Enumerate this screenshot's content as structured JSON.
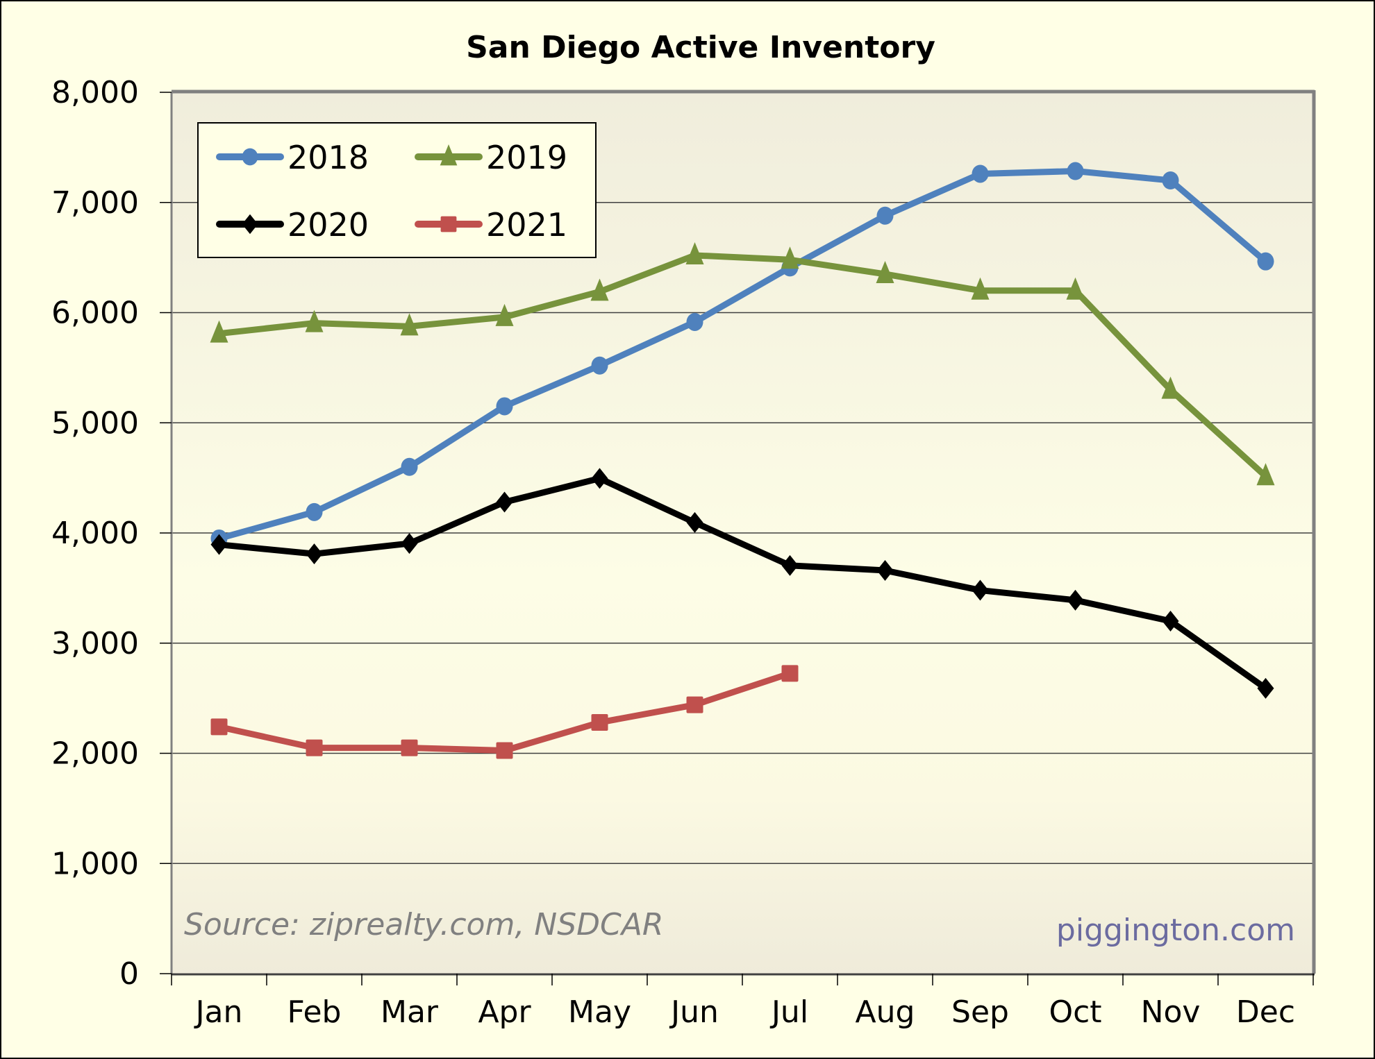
{
  "chart_data": {
    "type": "line",
    "title": "San Diego Active Inventory",
    "xlabel": "",
    "ylabel": "",
    "categories": [
      "Jan",
      "Feb",
      "Mar",
      "Apr",
      "May",
      "Jun",
      "Jul",
      "Aug",
      "Sep",
      "Oct",
      "Nov",
      "Dec"
    ],
    "ylim": [
      0,
      8000
    ],
    "yticks": [
      0,
      1000,
      2000,
      3000,
      4000,
      5000,
      6000,
      7000,
      8000
    ],
    "ytick_labels": [
      "0",
      "1,000",
      "2,000",
      "3,000",
      "4,000",
      "5,000",
      "6,000",
      "7,000",
      "8,000"
    ],
    "grid": true,
    "legend_position": "top-left",
    "series": [
      {
        "name": "2018",
        "color": "#4F81BD",
        "marker": "circle",
        "values": [
          3950,
          4190,
          4600,
          5150,
          5520,
          5915,
          6410,
          6880,
          7260,
          7285,
          7200,
          6465
        ]
      },
      {
        "name": "2019",
        "color": "#77933C",
        "marker": "triangle",
        "values": [
          5810,
          5905,
          5875,
          5960,
          6190,
          6520,
          6480,
          6350,
          6200,
          6200,
          5300,
          4515
        ]
      },
      {
        "name": "2020",
        "color": "#000000",
        "marker": "diamond",
        "values": [
          3895,
          3810,
          3905,
          4280,
          4495,
          4095,
          3705,
          3660,
          3480,
          3390,
          3200,
          2590
        ]
      },
      {
        "name": "2021",
        "color": "#C0504D",
        "marker": "square",
        "values": [
          2240,
          2050,
          2050,
          2025,
          2280,
          2440,
          2725
        ]
      }
    ],
    "annotations": {
      "source": "Source: ziprealty.com, NSDCAR",
      "watermark": "piggington.com"
    }
  }
}
